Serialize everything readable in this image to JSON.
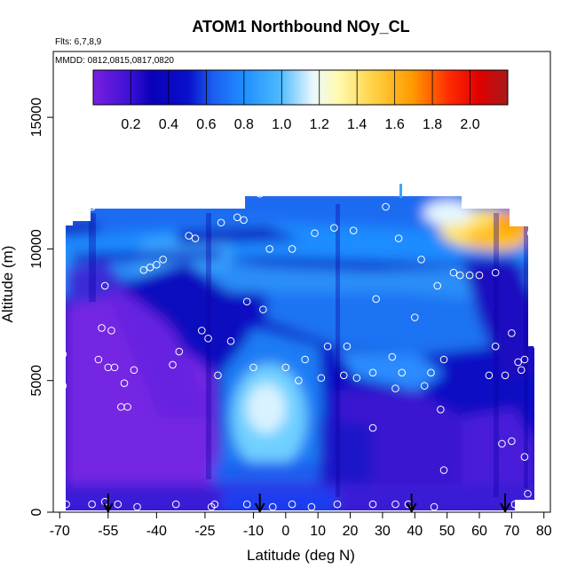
{
  "chart_data": {
    "type": "heatmap",
    "title": "ATOM1 Northbound NOy_CL",
    "flights_note": "Flts: 6,7,8,9",
    "dates_note": "MMDD: 0812,0815,0817,0820",
    "xlabel": "Latitude (deg N)",
    "ylabel": "Altitude (m)",
    "xlim": [
      -72,
      82
    ],
    "ylim": [
      0,
      17500
    ],
    "x_ticks": [
      -70,
      -55,
      -40,
      -25,
      -10,
      0,
      10,
      20,
      30,
      40,
      50,
      60,
      70,
      80
    ],
    "y_ticks": [
      0,
      5000,
      10000,
      15000
    ],
    "colorbar": {
      "range": [
        0,
        2.2
      ],
      "tick_values": [
        0.2,
        0.4,
        0.6,
        0.8,
        1.0,
        1.2,
        1.4,
        1.6,
        1.8,
        2.0
      ],
      "tick_labels": [
        "0.2",
        "0.4",
        "0.6",
        "0.8",
        "1.0",
        "1.2",
        "1.4",
        "1.6",
        "1.8",
        "2.0"
      ],
      "colors": [
        "#7a1fe0",
        "#1a00c8",
        "#0a0fcf",
        "#1c74ff",
        "#2aa0ff",
        "#5ec6ff",
        "#dff2ff",
        "#fff9b0",
        "#ffd25a",
        "#ffa500",
        "#ff6a00",
        "#ff1a00",
        "#e00000",
        "#b01010"
      ]
    },
    "grid": false,
    "arrow_latitudes": [
      -55,
      -8,
      39,
      68
    ],
    "sample_points": [
      {
        "lat": -69,
        "alt": 11000
      },
      {
        "lat": -68,
        "alt": 11100
      },
      {
        "lat": -67,
        "alt": 11100
      },
      {
        "lat": -65,
        "alt": 11400
      },
      {
        "lat": -60,
        "alt": 11600
      },
      {
        "lat": -69,
        "alt": 6000
      },
      {
        "lat": -69,
        "alt": 4800
      },
      {
        "lat": -56,
        "alt": 8600
      },
      {
        "lat": -54,
        "alt": 6900
      },
      {
        "lat": -57,
        "alt": 7000
      },
      {
        "lat": -58,
        "alt": 5800
      },
      {
        "lat": -55,
        "alt": 5500
      },
      {
        "lat": -53,
        "alt": 5500
      },
      {
        "lat": -50,
        "alt": 4900
      },
      {
        "lat": -51,
        "alt": 4000
      },
      {
        "lat": -49,
        "alt": 4000
      },
      {
        "lat": -47,
        "alt": 5400
      },
      {
        "lat": -44,
        "alt": 9200
      },
      {
        "lat": -42,
        "alt": 9300
      },
      {
        "lat": -40,
        "alt": 9400
      },
      {
        "lat": -38,
        "alt": 9600
      },
      {
        "lat": -35,
        "alt": 5600
      },
      {
        "lat": -33,
        "alt": 6100
      },
      {
        "lat": -30,
        "alt": 10500
      },
      {
        "lat": -28,
        "alt": 10400
      },
      {
        "lat": -26,
        "alt": 6900
      },
      {
        "lat": -24,
        "alt": 6600
      },
      {
        "lat": -21,
        "alt": 5200
      },
      {
        "lat": -20,
        "alt": 11000
      },
      {
        "lat": -17,
        "alt": 6500
      },
      {
        "lat": -15,
        "alt": 11200
      },
      {
        "lat": -13,
        "alt": 11100
      },
      {
        "lat": -12,
        "alt": 8000
      },
      {
        "lat": -10,
        "alt": 5500
      },
      {
        "lat": -8,
        "alt": 12100
      },
      {
        "lat": -7,
        "alt": 7700
      },
      {
        "lat": -5,
        "alt": 10000
      },
      {
        "lat": 0,
        "alt": 5500
      },
      {
        "lat": 2,
        "alt": 10000
      },
      {
        "lat": 4,
        "alt": 5000
      },
      {
        "lat": 6,
        "alt": 5800
      },
      {
        "lat": 9,
        "alt": 10600
      },
      {
        "lat": 11,
        "alt": 5100
      },
      {
        "lat": 13,
        "alt": 6300
      },
      {
        "lat": 15,
        "alt": 10800
      },
      {
        "lat": 18,
        "alt": 5200
      },
      {
        "lat": 19,
        "alt": 6300
      },
      {
        "lat": 21,
        "alt": 10700
      },
      {
        "lat": 22,
        "alt": 5100
      },
      {
        "lat": 27,
        "alt": 5300
      },
      {
        "lat": 27,
        "alt": 3200
      },
      {
        "lat": 28,
        "alt": 8100
      },
      {
        "lat": 31,
        "alt": 11600
      },
      {
        "lat": 33,
        "alt": 5900
      },
      {
        "lat": 34,
        "alt": 4700
      },
      {
        "lat": 35,
        "alt": 10400
      },
      {
        "lat": 36,
        "alt": 5300
      },
      {
        "lat": 40,
        "alt": 7400
      },
      {
        "lat": 42,
        "alt": 9600
      },
      {
        "lat": 43,
        "alt": 4800
      },
      {
        "lat": 45,
        "alt": 5300
      },
      {
        "lat": 47,
        "alt": 8600
      },
      {
        "lat": 48,
        "alt": 3900
      },
      {
        "lat": 49,
        "alt": 1600
      },
      {
        "lat": 49,
        "alt": 5800
      },
      {
        "lat": 52,
        "alt": 9100
      },
      {
        "lat": 54,
        "alt": 9000
      },
      {
        "lat": 57,
        "alt": 9000
      },
      {
        "lat": 60,
        "alt": 9000
      },
      {
        "lat": 63,
        "alt": 5200
      },
      {
        "lat": 65,
        "alt": 9100
      },
      {
        "lat": 65,
        "alt": 6300
      },
      {
        "lat": 67,
        "alt": 2600
      },
      {
        "lat": 68,
        "alt": 5200
      },
      {
        "lat": 70,
        "alt": 6800
      },
      {
        "lat": 70,
        "alt": 2700
      },
      {
        "lat": 71,
        "alt": 11000
      },
      {
        "lat": 72,
        "alt": 5700
      },
      {
        "lat": 73,
        "alt": 5400
      },
      {
        "lat": 74,
        "alt": 5800
      },
      {
        "lat": 74,
        "alt": 2100
      },
      {
        "lat": 75,
        "alt": 700
      },
      {
        "lat": 76,
        "alt": 11800
      },
      {
        "lat": 76,
        "alt": 10600
      },
      {
        "lat": 78,
        "alt": 6300
      },
      {
        "lat": 79,
        "alt": 700
      },
      {
        "lat": -68,
        "alt": 300
      },
      {
        "lat": -60,
        "alt": 300
      },
      {
        "lat": -56,
        "alt": 400
      },
      {
        "lat": -52,
        "alt": 300
      },
      {
        "lat": -46,
        "alt": 200
      },
      {
        "lat": -34,
        "alt": 300
      },
      {
        "lat": -23,
        "alt": 200
      },
      {
        "lat": -22,
        "alt": 300
      },
      {
        "lat": -12,
        "alt": 300
      },
      {
        "lat": -4,
        "alt": 200
      },
      {
        "lat": 2,
        "alt": 300
      },
      {
        "lat": 8,
        "alt": 200
      },
      {
        "lat": 16,
        "alt": 300
      },
      {
        "lat": 27,
        "alt": 300
      },
      {
        "lat": 34,
        "alt": 300
      },
      {
        "lat": 38,
        "alt": 300
      },
      {
        "lat": 46,
        "alt": 200
      },
      {
        "lat": 71,
        "alt": 300
      }
    ]
  }
}
